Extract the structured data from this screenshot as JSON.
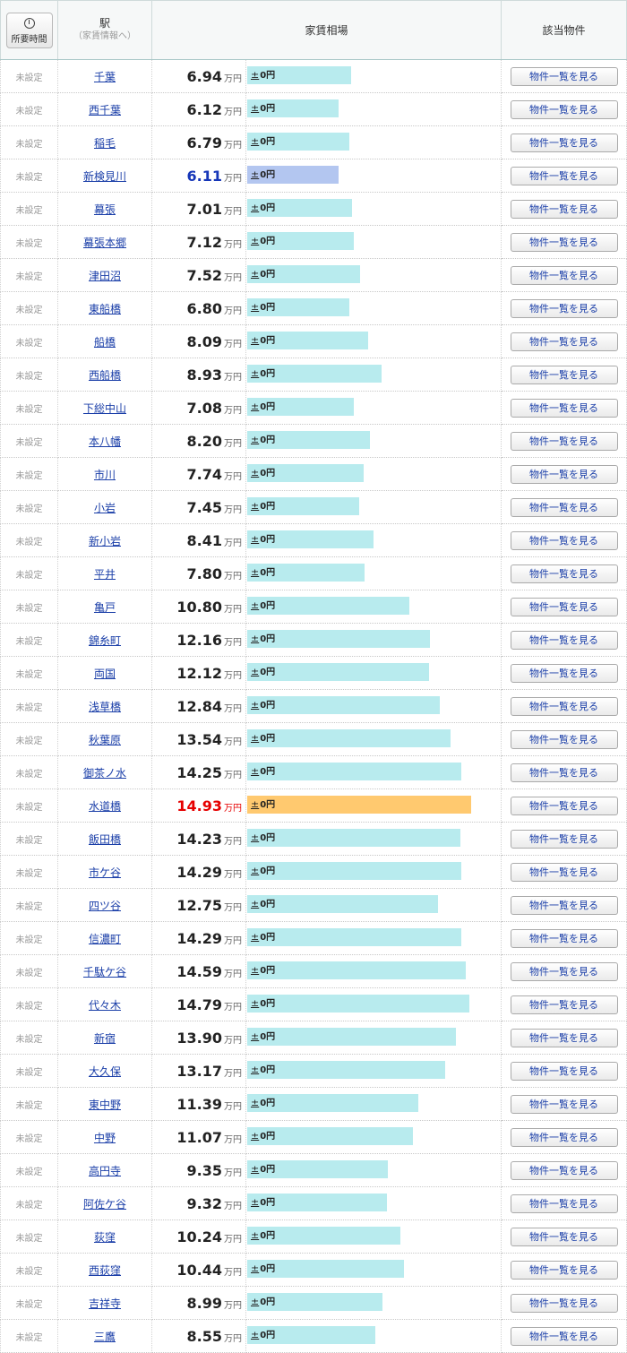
{
  "header": {
    "time_button_label": "所要時間",
    "station_label": "駅",
    "station_sub": "（家賃情報へ）",
    "rent_label": "家賃相場",
    "listings_label": "該当物件"
  },
  "row_labels": {
    "time": "未設定",
    "unit": "万円",
    "diff_sign": "±",
    "diff_value": "0円",
    "button": "物件一覧を見る"
  },
  "colors": {
    "bar": "#b8ebee",
    "bar_lowest": "#b3c6f0",
    "bar_highest": "#ffc96f",
    "lowest_text": "#1536b8",
    "highest_text": "#e60000"
  },
  "rows": [
    {
      "station": "千葉",
      "price": "6.94"
    },
    {
      "station": "西千葉",
      "price": "6.12"
    },
    {
      "station": "稲毛",
      "price": "6.79"
    },
    {
      "station": "新検見川",
      "price": "6.11",
      "highlight": "low"
    },
    {
      "station": "幕張",
      "price": "7.01"
    },
    {
      "station": "幕張本郷",
      "price": "7.12"
    },
    {
      "station": "津田沼",
      "price": "7.52"
    },
    {
      "station": "東船橋",
      "price": "6.80"
    },
    {
      "station": "船橋",
      "price": "8.09"
    },
    {
      "station": "西船橋",
      "price": "8.93"
    },
    {
      "station": "下総中山",
      "price": "7.08"
    },
    {
      "station": "本八幡",
      "price": "8.20"
    },
    {
      "station": "市川",
      "price": "7.74"
    },
    {
      "station": "小岩",
      "price": "7.45"
    },
    {
      "station": "新小岩",
      "price": "8.41"
    },
    {
      "station": "平井",
      "price": "7.80"
    },
    {
      "station": "亀戸",
      "price": "10.80"
    },
    {
      "station": "錦糸町",
      "price": "12.16"
    },
    {
      "station": "両国",
      "price": "12.12"
    },
    {
      "station": "浅草橋",
      "price": "12.84"
    },
    {
      "station": "秋葉原",
      "price": "13.54"
    },
    {
      "station": "御茶ノ水",
      "price": "14.25"
    },
    {
      "station": "水道橋",
      "price": "14.93",
      "highlight": "high"
    },
    {
      "station": "飯田橋",
      "price": "14.23"
    },
    {
      "station": "市ケ谷",
      "price": "14.29"
    },
    {
      "station": "四ツ谷",
      "price": "12.75"
    },
    {
      "station": "信濃町",
      "price": "14.29"
    },
    {
      "station": "千駄ケ谷",
      "price": "14.59"
    },
    {
      "station": "代々木",
      "price": "14.79"
    },
    {
      "station": "新宿",
      "price": "13.90"
    },
    {
      "station": "大久保",
      "price": "13.17"
    },
    {
      "station": "東中野",
      "price": "11.39"
    },
    {
      "station": "中野",
      "price": "11.07"
    },
    {
      "station": "高円寺",
      "price": "9.35"
    },
    {
      "station": "阿佐ケ谷",
      "price": "9.32"
    },
    {
      "station": "荻窪",
      "price": "10.24"
    },
    {
      "station": "西荻窪",
      "price": "10.44"
    },
    {
      "station": "吉祥寺",
      "price": "8.99"
    },
    {
      "station": "三鷹",
      "price": "8.55"
    }
  ]
}
